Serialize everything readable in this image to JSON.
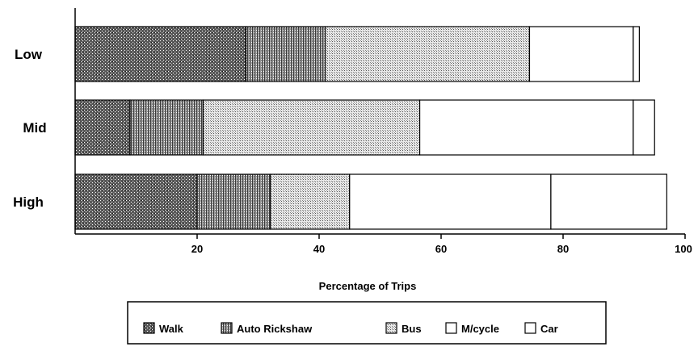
{
  "chart_data": {
    "type": "bar",
    "orientation": "horizontal",
    "stacked": true,
    "categories": [
      "Low",
      "Mid",
      "High"
    ],
    "series": [
      {
        "name": "Walk",
        "values": [
          28,
          9,
          20
        ],
        "pattern": "walk"
      },
      {
        "name": "Auto Rickshaw",
        "values": [
          13,
          12,
          12
        ],
        "pattern": "rickshaw"
      },
      {
        "name": "Bus",
        "values": [
          33.5,
          35.5,
          13
        ],
        "pattern": "bus"
      },
      {
        "name": "M/cycle",
        "values": [
          17,
          35,
          33
        ],
        "pattern": "none"
      },
      {
        "name": "Car",
        "values": [
          1,
          3.5,
          19
        ],
        "pattern": "none"
      }
    ],
    "xlabel": "Percentage of Trips",
    "ylabel": "",
    "xlim": [
      0,
      100
    ],
    "xticks": [
      20,
      40,
      60,
      80,
      100
    ],
    "grid": false,
    "legend_position": "bottom"
  }
}
